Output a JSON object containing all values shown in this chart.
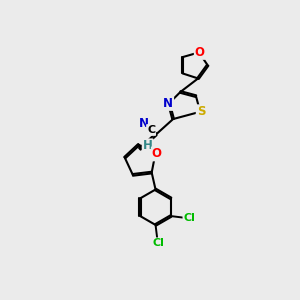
{
  "background_color": "#ebebeb",
  "bond_color": "#000000",
  "atom_colors": {
    "O": "#ff0000",
    "N": "#0000cc",
    "S": "#ccaa00",
    "Cl": "#00bb00",
    "C": "#000000",
    "H": "#338888"
  }
}
